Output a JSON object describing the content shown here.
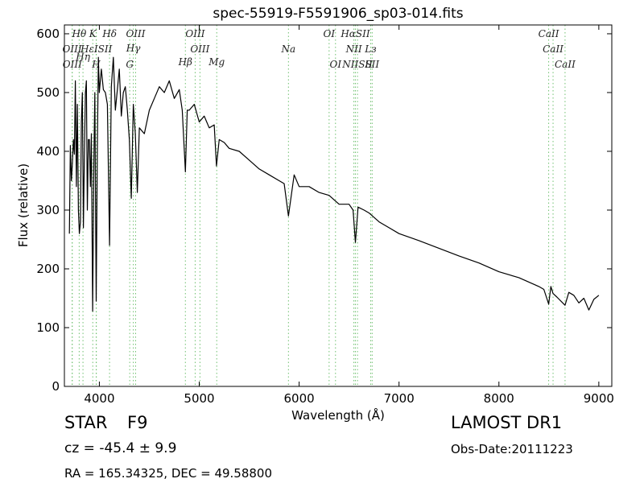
{
  "info": {
    "object_class": "STAR",
    "subclass": "F9",
    "redshift": "cz = -45.4 ± 9.9",
    "coords": "RA = 165.34325, DEC = 49.58800",
    "survey": "LAMOST DR1",
    "obs_date": "Obs-Date:20111223"
  },
  "colors": {
    "spectrum": "#000000",
    "lines": "#6fc06f",
    "axes": "#000000"
  },
  "chart_data": {
    "type": "line",
    "title": "spec-55919-F5591906_sp03-014.fits",
    "xlabel": "Wavelength (Å)",
    "ylabel": "Flux (relative)",
    "xlim": [
      3650,
      9130
    ],
    "ylim": [
      0,
      615
    ],
    "xticks": [
      4000,
      5000,
      6000,
      7000,
      8000,
      9000
    ],
    "yticks": [
      0,
      100,
      200,
      300,
      400,
      500,
      600
    ],
    "grid": false,
    "legend": "none",
    "series": [
      {
        "x": [
          3700,
          3710,
          3720,
          3730,
          3740,
          3750,
          3760,
          3770,
          3780,
          3790,
          3800,
          3810,
          3820,
          3830,
          3840,
          3850,
          3860,
          3870,
          3880,
          3890,
          3900,
          3910,
          3920,
          3933,
          3945,
          3955,
          3968,
          3980,
          3990,
          4000,
          4020,
          4040,
          4060,
          4080,
          4102,
          4120,
          4140,
          4160,
          4180,
          4200,
          4220,
          4240,
          4260,
          4280,
          4300,
          4320,
          4340,
          4360,
          4380,
          4400,
          4450,
          4500,
          4550,
          4600,
          4650,
          4700,
          4750,
          4800,
          4830,
          4861,
          4880,
          4900,
          4950,
          5000,
          5050,
          5100,
          5150,
          5172,
          5200,
          5250,
          5300,
          5400,
          5500,
          5600,
          5700,
          5800,
          5850,
          5893,
          5950,
          6000,
          6100,
          6200,
          6300,
          6400,
          6500,
          6540,
          6563,
          6590,
          6650,
          6700,
          6800,
          6900,
          7000,
          7200,
          7400,
          7600,
          7800,
          8000,
          8200,
          8400,
          8450,
          8498,
          8520,
          8542,
          8580,
          8662,
          8700,
          8750,
          8800,
          8850,
          8900,
          8950,
          9000
        ],
        "y": [
          260,
          410,
          350,
          380,
          420,
          395,
          520,
          340,
          480,
          300,
          260,
          280,
          450,
          500,
          270,
          390,
          500,
          520,
          300,
          420,
          420,
          340,
          430,
          128,
          380,
          500,
          145,
          400,
          560,
          500,
          540,
          505,
          500,
          480,
          240,
          510,
          560,
          470,
          505,
          540,
          460,
          500,
          510,
          470,
          420,
          320,
          480,
          430,
          330,
          440,
          430,
          470,
          490,
          510,
          500,
          520,
          490,
          505,
          470,
          365,
          470,
          470,
          480,
          450,
          460,
          440,
          445,
          375,
          420,
          415,
          405,
          400,
          385,
          370,
          360,
          350,
          345,
          290,
          360,
          340,
          340,
          330,
          325,
          310,
          310,
          300,
          245,
          305,
          300,
          295,
          280,
          270,
          260,
          248,
          235,
          222,
          210,
          195,
          185,
          170,
          165,
          140,
          170,
          158,
          152,
          138,
          160,
          155,
          142,
          150,
          130,
          148,
          155
        ]
      }
    ],
    "spectral_lines": [
      {
        "label": "OIII",
        "wavelength": 3727,
        "row": 1
      },
      {
        "label": "OIII",
        "wavelength": 3729,
        "row": 2
      },
      {
        "label": "Hθ",
        "wavelength": 3798,
        "row": 0
      },
      {
        "label": "Hη",
        "wavelength": 3836,
        "row": 1.5
      },
      {
        "label": "K",
        "wavelength": 3934,
        "row": 0
      },
      {
        "label": "HεISII",
        "wavelength": 3970,
        "row": 1
      },
      {
        "label": "H",
        "wavelength": 3968,
        "row": 2
      },
      {
        "label": "Hδ",
        "wavelength": 4102,
        "row": 0
      },
      {
        "label": "OIII",
        "wavelength": 4363,
        "row": 0
      },
      {
        "label": "Hγ",
        "wavelength": 4340,
        "row": 0.95
      },
      {
        "label": "G",
        "wavelength": 4304,
        "row": 2
      },
      {
        "label": "OIII",
        "wavelength": 4959,
        "row": 0
      },
      {
        "label": "OIII",
        "wavelength": 5007,
        "row": 1
      },
      {
        "label": "Hβ",
        "wavelength": 4861,
        "row": 1.85
      },
      {
        "label": "Mg",
        "wavelength": 5175,
        "row": 1.85
      },
      {
        "label": "Na",
        "wavelength": 5893,
        "row": 1
      },
      {
        "label": "OI",
        "wavelength": 6300,
        "row": 0
      },
      {
        "label": "OI",
        "wavelength": 6364,
        "row": 2
      },
      {
        "label": "HαSII",
        "wavelength": 6563,
        "row": 0
      },
      {
        "label": "NII",
        "wavelength": 6548,
        "row": 1
      },
      {
        "label": "Lз",
        "wavelength": 6716,
        "row": 1
      },
      {
        "label": "NIISII",
        "wavelength": 6584,
        "row": 2
      },
      {
        "label": "SII",
        "wavelength": 6731,
        "row": 2
      },
      {
        "label": "CaII",
        "wavelength": 8498,
        "row": 0
      },
      {
        "label": "CaII",
        "wavelength": 8542,
        "row": 1
      },
      {
        "label": "CaII",
        "wavelength": 8662,
        "row": 2
      }
    ]
  }
}
